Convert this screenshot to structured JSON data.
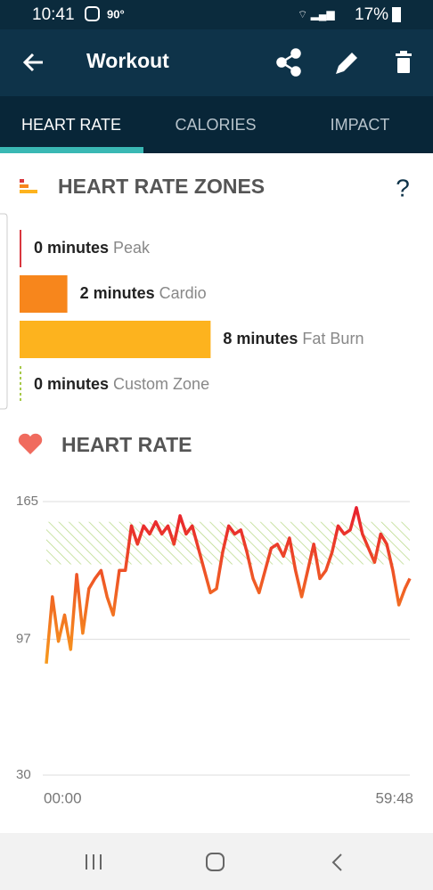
{
  "status_bar": {
    "time": "10:41",
    "temperature": "90°",
    "battery": "17%"
  },
  "header": {
    "title": "Workout"
  },
  "tabs": [
    "HEART RATE",
    "CALORIES",
    "IMPACT"
  ],
  "zones_section": {
    "title": "HEART RATE ZONES",
    "help": "?",
    "zones": [
      {
        "label": "0 minutes",
        "minutes": 0,
        "name": "Peak",
        "color": "#d9363e"
      },
      {
        "label": "2 minutes",
        "minutes": 2,
        "name": "Cardio",
        "color": "#f7861c"
      },
      {
        "label": "8 minutes",
        "minutes": 8,
        "name": "Fat Burn",
        "color": "#fdb31e"
      },
      {
        "label": "0 minutes",
        "minutes": 0,
        "name": "Custom Zone",
        "color": "#a8c94a"
      }
    ]
  },
  "heart_rate_section": {
    "title": "HEART RATE"
  },
  "chart_data": {
    "type": "line",
    "x": [
      0,
      1,
      2,
      3,
      4,
      5,
      6,
      7,
      8,
      9,
      10,
      11,
      12,
      13,
      14,
      15,
      16,
      17,
      18,
      19,
      20,
      21,
      22,
      23,
      24,
      25,
      26,
      27,
      28,
      29,
      30,
      31,
      32,
      33,
      34,
      35,
      36,
      37,
      38,
      39,
      40,
      41,
      42,
      43,
      44,
      45,
      46,
      47,
      48,
      49,
      50,
      51,
      52,
      53,
      54,
      55,
      56,
      57,
      58,
      59,
      59.8
    ],
    "values": [
      85,
      118,
      96,
      109,
      92,
      129,
      100,
      122,
      127,
      131,
      118,
      109,
      131,
      131,
      153,
      144,
      153,
      149,
      155,
      149,
      153,
      144,
      158,
      149,
      153,
      142,
      131,
      120,
      122,
      140,
      153,
      149,
      151,
      140,
      127,
      120,
      131,
      142,
      144,
      138,
      147,
      131,
      118,
      131,
      144,
      127,
      131,
      140,
      153,
      149,
      151,
      162,
      149,
      142,
      135,
      149,
      144,
      131,
      114,
      122,
      127
    ],
    "xlim": [
      0,
      59.8
    ],
    "xticks": [
      {
        "value": 0,
        "label": "00:00"
      },
      {
        "value": 59.8,
        "label": "59:48"
      }
    ],
    "ylim": [
      30,
      165
    ],
    "yticks": [
      30,
      97,
      165
    ],
    "zone_band": [
      134,
      155
    ],
    "colors": [
      "#f79a1c",
      "#e8202e"
    ],
    "grid": true
  }
}
